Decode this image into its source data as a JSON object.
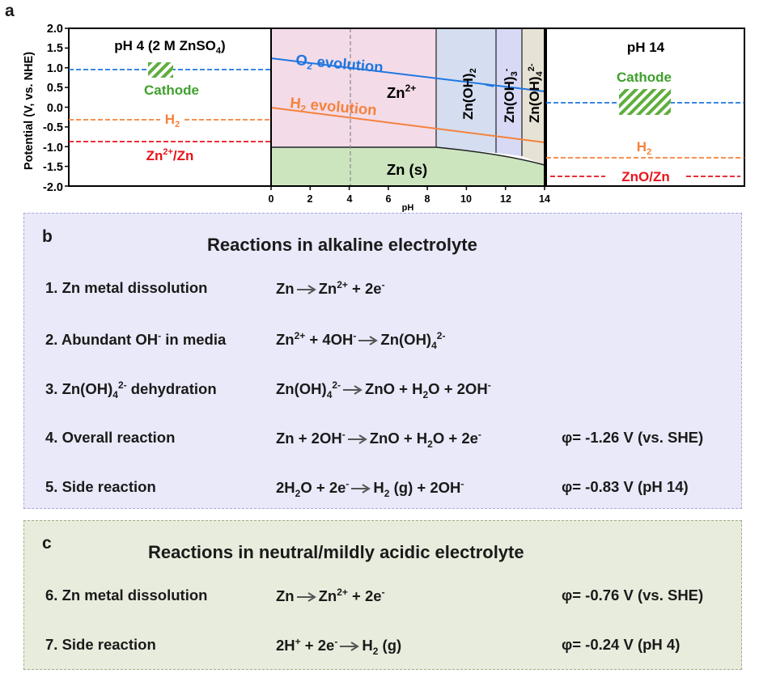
{
  "panel_a": {
    "letter": "a",
    "y_axis_label": "Potential (V, vs. NHE)",
    "y_ticks": [
      "2.0",
      "1.5",
      "1.0",
      "0.5",
      "0.0",
      "-0.5",
      "-1.0",
      "-1.5",
      "-2.0"
    ],
    "x_ticks": [
      "0",
      "2",
      "4",
      "6",
      "8",
      "10",
      "12",
      "14"
    ],
    "x_axis_label": "pH",
    "left_box": {
      "title_main": "pH 4 (2 M ZnSO",
      "title_sub": "4",
      "title_close": ")",
      "cathode": "Cathode",
      "h2_main": "H",
      "h2_sub": "2",
      "zn_main": "Zn",
      "zn_sup": "2+",
      "zn_rest": "/Zn",
      "cathode_potential": 1.0,
      "h2_potential": -0.24,
      "zn_potential": -0.76
    },
    "middle": {
      "o2_main": "O",
      "o2_sub": "2",
      "o2_rest": " evolution",
      "h2_main": "H",
      "h2_sub": "2",
      "h2_rest": " evolution",
      "zn2_main": "Zn",
      "zn2_sup": "2+",
      "zns": "Zn (s)",
      "zoh2_main": "Zn(OH)",
      "zoh2_sub": "2",
      "zoh3_main": "Zn(OH)",
      "zoh3_sub": "3",
      "zoh3_sup": "-",
      "zoh4_main": "Zn(OH)",
      "zoh4_sub": "4",
      "zoh4_sup": "2-",
      "region_boundaries_ph": [
        8.4,
        11.4,
        12.8
      ],
      "marker_ph": 4
    },
    "right_box": {
      "title": "pH 14",
      "cathode": "Cathode",
      "h2_main": "H",
      "h2_sub": "2",
      "zno": "ZnO/Zn",
      "cathode_potential": 0.4,
      "h2_potential": -0.83,
      "zno_potential": -1.26
    },
    "colors": {
      "o2_line": "#1f77e0",
      "h2_line": "#f5823c",
      "zn_line": "#e8141c",
      "cathode": "#3ea02c",
      "zn2_region": "#f4dbe8",
      "zns_region": "#cde5bf",
      "zoh2_region": "#d4def0",
      "zoh3_region": "#d8d9f5",
      "zoh4_region": "#e6e3d6"
    }
  },
  "panel_b": {
    "letter": "b",
    "title": "Reactions in alkaline electrolyte",
    "reactions": [
      {
        "label": "1. Zn metal dissolution"
      },
      {
        "label_main": "2. Abundant OH",
        "label_sup": "-",
        "label_rest": " in media"
      },
      {
        "label_main": "3. Zn(OH)",
        "label_sub": "4",
        "label_sup": "2-",
        "label_rest": " dehydration"
      },
      {
        "label": "4. Overall reaction",
        "phi": "φ= -1.26 V (vs. SHE)"
      },
      {
        "label": "5. Side reaction",
        "phi": "φ= -0.83 V (pH 14)"
      }
    ],
    "eq": {
      "zn": "Zn",
      "zn2_sup": "2+",
      "plus_2e": " + 2e",
      "e_sup": "-",
      "plus_4oh": " + 4OH",
      "oh_sup": "-",
      "znoh": "Zn(OH)",
      "sub4": "4",
      "sup2m": "2-",
      "zno_h": "ZnO + H",
      "sub2": "2",
      "o_2oh": "O + 2OH",
      "zn_2oh": "Zn + 2OH",
      "o_2e": "O + 2e",
      "h2o_lead": "2H",
      "o_2e_plain": "O + 2e",
      "h_main": "H",
      "g_2oh": " (g) + 2OH"
    }
  },
  "panel_c": {
    "letter": "c",
    "title": "Reactions in neutral/mildly acidic electrolyte",
    "reactions": [
      {
        "label": "6. Zn metal dissolution",
        "phi": "φ= -0.76 V (vs. SHE)"
      },
      {
        "label": "7. Side reaction",
        "phi": "φ= -0.24 V (pH 4)"
      }
    ],
    "eq": {
      "zn": "Zn",
      "zn2_sup": "2+",
      "plus_2e": " + 2e",
      "e_sup": "-",
      "h_lead": "2H",
      "h_sup": "+",
      "h2": "H",
      "sub2": "2",
      "g": " (g)"
    }
  }
}
